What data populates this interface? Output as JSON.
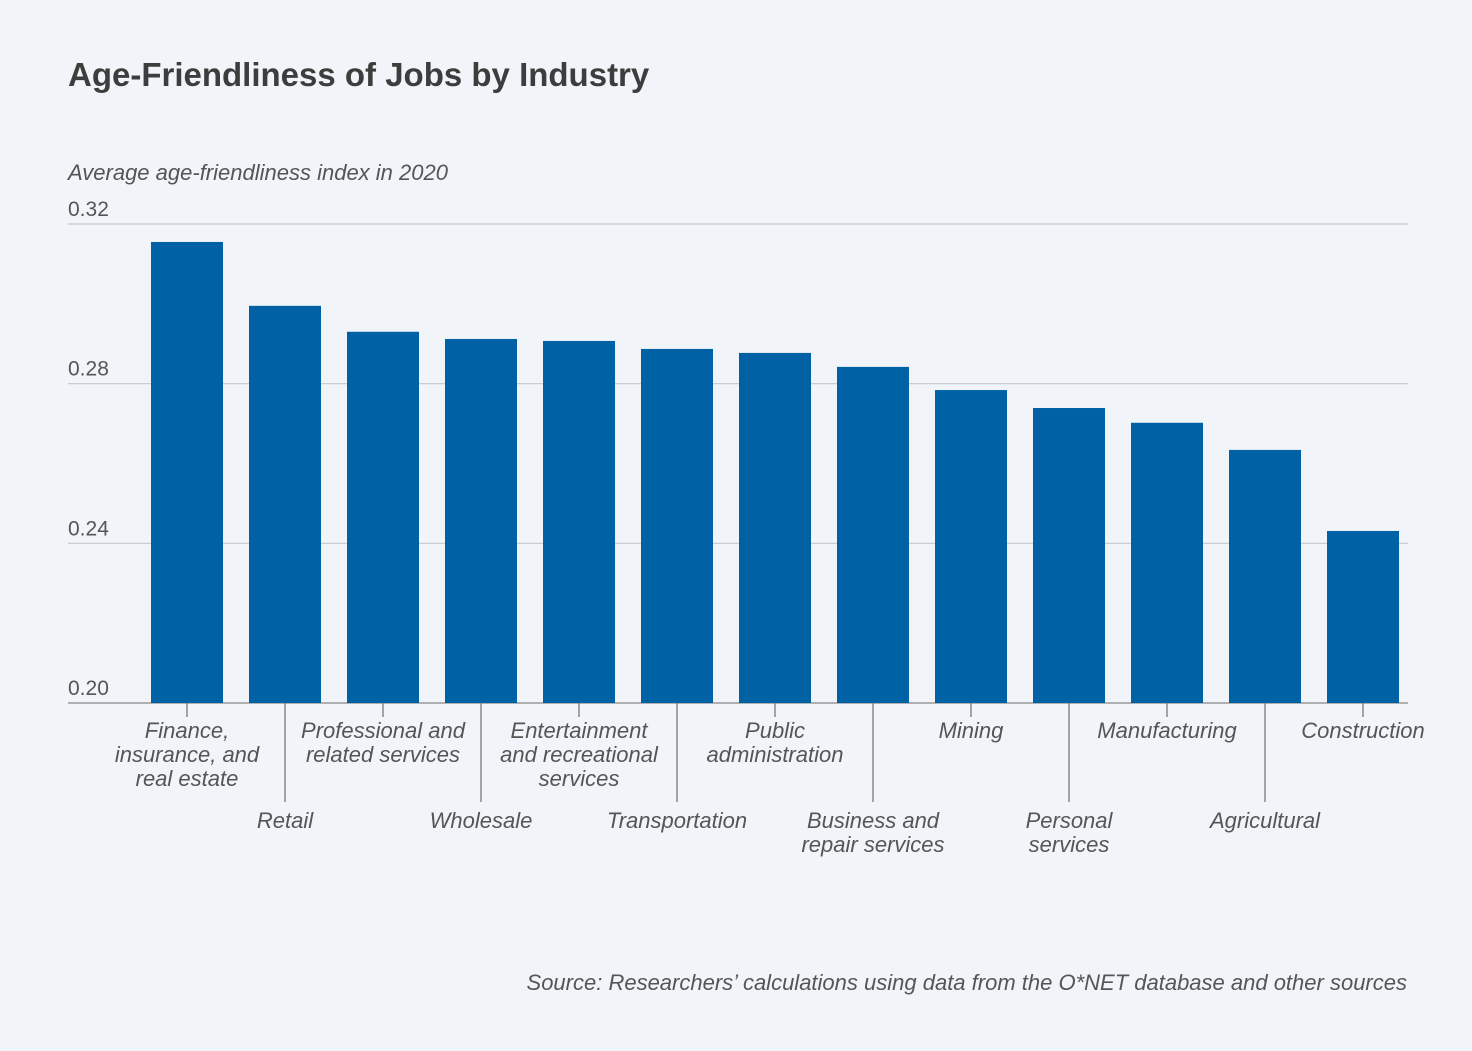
{
  "chart_data": {
    "type": "bar",
    "title": "Age-Friendliness of Jobs by Industry",
    "ylabel": "Average age-friendliness index in 2020",
    "xlabel": "",
    "ylim": [
      0.2,
      0.32
    ],
    "yticks": [
      "0.20",
      "0.24",
      "0.28",
      "0.32"
    ],
    "grid": true,
    "bar_color": "#0061a5",
    "categories": [
      [
        "Finance, insurance,",
        "and real estate"
      ],
      [
        "Retail"
      ],
      [
        "Professional and",
        "related services"
      ],
      [
        "Wholesale"
      ],
      [
        "Entertainment and",
        "recreational services"
      ],
      [
        "Transportation"
      ],
      [
        "Public",
        "administration"
      ],
      [
        "Business and",
        "repair services"
      ],
      [
        "Mining"
      ],
      [
        "Personal",
        "services"
      ],
      [
        "Manufacturing"
      ],
      [
        "Agricultural"
      ],
      [
        "Construction"
      ]
    ],
    "values": [
      0.3155,
      0.2995,
      0.293,
      0.2912,
      0.2907,
      0.2887,
      0.2877,
      0.2842,
      0.2784,
      0.2739,
      0.2702,
      0.2634,
      0.2431
    ],
    "source": "Source: Researchers’ calculations using data from the O*NET database and other sources"
  }
}
